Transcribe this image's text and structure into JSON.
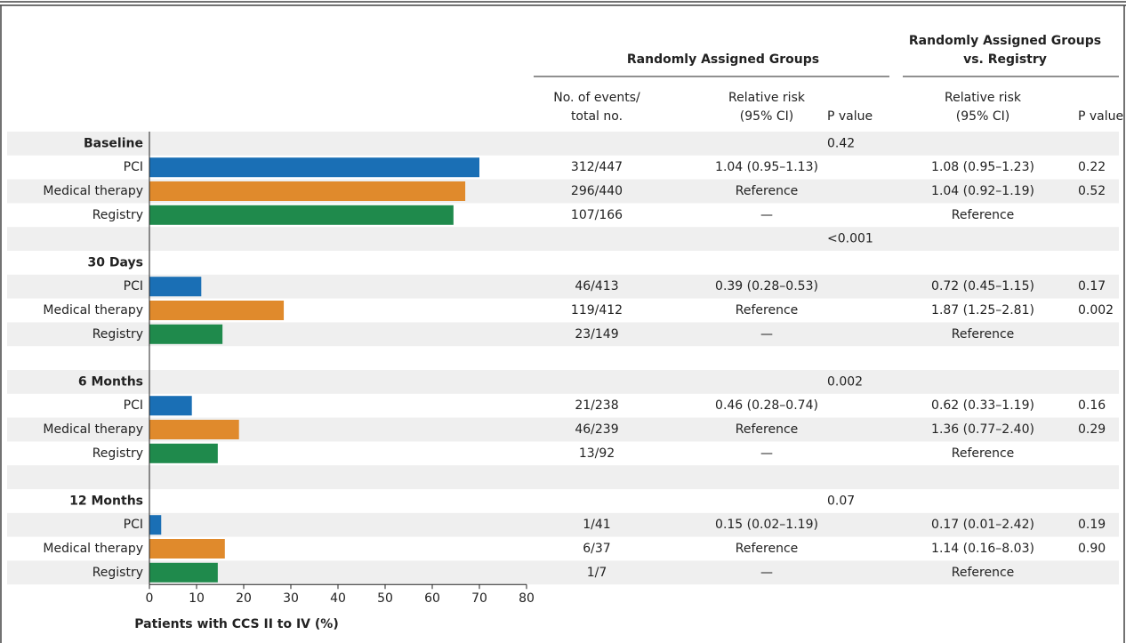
{
  "chart_data": {
    "type": "barh",
    "xlabel": "Patients with CCS II to IV (%)",
    "xlim": [
      0,
      80
    ],
    "xticks": [
      0,
      10,
      20,
      30,
      40,
      50,
      60,
      70,
      80
    ],
    "headers": {
      "group1": [
        "Randomly Assigned Groups"
      ],
      "group2": [
        "Randomly Assigned Groups",
        "vs. Registry"
      ],
      "events": [
        "No. of events/",
        "total no."
      ],
      "rr": [
        "Relative risk",
        "(95% CI)"
      ],
      "p_value": [
        "P value"
      ],
      "rr_registry": [
        "Relative risk",
        "(95% CI)"
      ],
      "p_registry": [
        "P value"
      ]
    },
    "rows": [
      {
        "label": "Baseline",
        "p_value": "0.42"
      },
      {
        "label": "PCI",
        "value": 70,
        "color": "#1a6fb5",
        "events": "312/447",
        "rr": "1.04 (0.95–1.13)",
        "rr_registry": "1.08 (0.95–1.23)",
        "p_registry": "0.22"
      },
      {
        "label": "Medical therapy",
        "value": 67,
        "color": "#e08a2c",
        "events": "296/440",
        "rr": "Reference",
        "rr_registry": "1.04 (0.92–1.19)",
        "p_registry": "0.52"
      },
      {
        "label": "Registry",
        "value": 64.5,
        "color": "#1f8a4c",
        "events": "107/166",
        "rr": "—",
        "rr_registry": "Reference"
      },
      {
        "p_value": "<0.001"
      },
      {
        "label": "30 Days"
      },
      {
        "label": "PCI",
        "value": 11,
        "color": "#1a6fb5",
        "events": "46/413",
        "rr": "0.39 (0.28–0.53)",
        "rr_registry": "0.72 (0.45–1.15)",
        "p_registry": "0.17"
      },
      {
        "label": "Medical therapy",
        "value": 28.5,
        "color": "#e08a2c",
        "events": "119/412",
        "rr": "Reference",
        "rr_registry": "1.87 (1.25–2.81)",
        "p_registry": "0.002"
      },
      {
        "label": "Registry",
        "value": 15.5,
        "color": "#1f8a4c",
        "events": "23/149",
        "rr": "—",
        "rr_registry": "Reference"
      },
      {},
      {
        "label": "6 Months",
        "p_value": "0.002"
      },
      {
        "label": "PCI",
        "value": 9,
        "color": "#1a6fb5",
        "events": "21/238",
        "rr": "0.46 (0.28–0.74)",
        "rr_registry": "0.62 (0.33–1.19)",
        "p_registry": "0.16"
      },
      {
        "label": "Medical therapy",
        "value": 19,
        "color": "#e08a2c",
        "events": "46/239",
        "rr": "Reference",
        "rr_registry": "1.36 (0.77–2.40)",
        "p_registry": "0.29"
      },
      {
        "label": "Registry",
        "value": 14.5,
        "color": "#1f8a4c",
        "events": "13/92",
        "rr": "—",
        "rr_registry": "Reference"
      },
      {},
      {
        "label": "12 Months",
        "p_value": "0.07"
      },
      {
        "label": "PCI",
        "value": 2.5,
        "color": "#1a6fb5",
        "events": "1/41",
        "rr": "0.15 (0.02–1.19)",
        "rr_registry": "0.17 (0.01–2.42)",
        "p_registry": "0.19"
      },
      {
        "label": "Medical therapy",
        "value": 16,
        "color": "#e08a2c",
        "events": "6/37",
        "rr": "Reference",
        "rr_registry": "1.14 (0.16–8.03)",
        "p_registry": "0.90"
      },
      {
        "label": "Registry",
        "value": 14.5,
        "color": "#1f8a4c",
        "events": "1/7",
        "rr": "—",
        "rr_registry": "Reference"
      }
    ]
  }
}
